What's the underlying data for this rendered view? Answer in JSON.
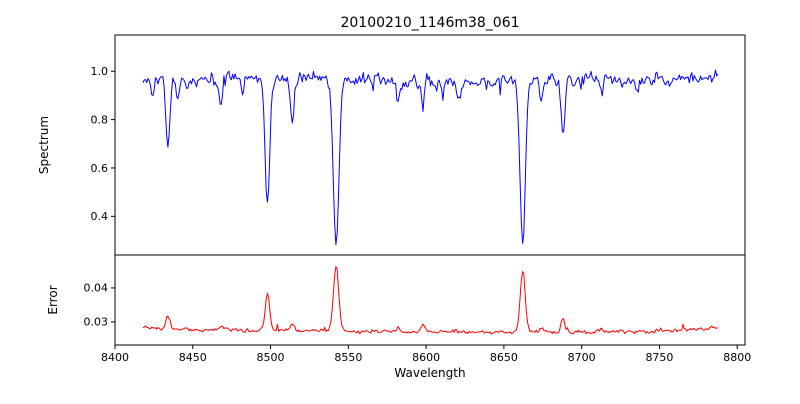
{
  "title": "20100210_1146m38_061",
  "chart_data": {
    "type": "line",
    "title": "20100210_1146m38_061",
    "xlabel": "Wavelength",
    "grid": false,
    "legend": "none",
    "x_data_range": [
      8418,
      8788
    ],
    "xlim": [
      8400,
      8805
    ],
    "xticks": [
      {
        "value": 8400,
        "label": "8400"
      },
      {
        "value": 8450,
        "label": "8450"
      },
      {
        "value": 8500,
        "label": "8500"
      },
      {
        "value": 8550,
        "label": "8550"
      },
      {
        "value": 8600,
        "label": "8600"
      },
      {
        "value": 8650,
        "label": "8650"
      },
      {
        "value": 8700,
        "label": "8700"
      },
      {
        "value": 8750,
        "label": "8750"
      },
      {
        "value": 8800,
        "label": "8800"
      }
    ],
    "panels": [
      {
        "name": "spectrum",
        "ylabel": "Spectrum",
        "line_color": "#0000ff",
        "ylim": [
          0.24,
          1.15
        ],
        "yticks": [
          {
            "value": 0.4,
            "label": "0.4"
          },
          {
            "value": 0.6,
            "label": "0.6"
          },
          {
            "value": 0.8,
            "label": "0.8"
          },
          {
            "value": 1.0,
            "label": "1.0"
          }
        ],
        "continuum_level": 0.965,
        "noise_sigma": 0.021,
        "absorption_lines": [
          {
            "center": 8424.0,
            "depth": 0.06,
            "sigma": 1.0
          },
          {
            "center": 8434.0,
            "depth": 0.27,
            "sigma": 1.3
          },
          {
            "center": 8440.0,
            "depth": 0.09,
            "sigma": 1.0
          },
          {
            "center": 8446.0,
            "depth": 0.05,
            "sigma": 0.9
          },
          {
            "center": 8468.0,
            "depth": 0.11,
            "sigma": 1.1
          },
          {
            "center": 8482.0,
            "depth": 0.05,
            "sigma": 0.9
          },
          {
            "center": 8498.0,
            "depth": 0.535,
            "sigma": 1.5
          },
          {
            "center": 8514.0,
            "depth": 0.18,
            "sigma": 1.2
          },
          {
            "center": 8542.1,
            "depth": 0.69,
            "sigma": 1.8
          },
          {
            "center": 8582.0,
            "depth": 0.09,
            "sigma": 1.0
          },
          {
            "center": 8598.0,
            "depth": 0.12,
            "sigma": 1.1
          },
          {
            "center": 8611.0,
            "depth": 0.05,
            "sigma": 0.9
          },
          {
            "center": 8621.0,
            "depth": 0.07,
            "sigma": 1.0
          },
          {
            "center": 8662.1,
            "depth": 0.67,
            "sigma": 1.7
          },
          {
            "center": 8674.0,
            "depth": 0.08,
            "sigma": 1.0
          },
          {
            "center": 8688.0,
            "depth": 0.21,
            "sigma": 1.2
          },
          {
            "center": 8713.0,
            "depth": 0.06,
            "sigma": 1.0
          },
          {
            "center": 8736.0,
            "depth": 0.05,
            "sigma": 0.9
          },
          {
            "center": 8757.0,
            "depth": 0.04,
            "sigma": 0.9
          }
        ]
      },
      {
        "name": "error",
        "ylabel": "Error",
        "line_color": "#ff0000",
        "ylim": [
          0.0232,
          0.0497
        ],
        "yticks": [
          {
            "value": 0.03,
            "label": "0.03"
          },
          {
            "value": 0.04,
            "label": "0.04"
          }
        ],
        "baseline_level": 0.0272,
        "noise_sigma": 0.00045,
        "edge_bump": {
          "amplitude": 0.0012,
          "scale": 20
        },
        "error_peaks": [
          {
            "center": 8434.0,
            "height": 0.0039,
            "sigma": 1.3
          },
          {
            "center": 8468.0,
            "height": 0.0012,
            "sigma": 1.0
          },
          {
            "center": 8498.0,
            "height": 0.0112,
            "sigma": 1.4
          },
          {
            "center": 8514.0,
            "height": 0.0022,
            "sigma": 1.1
          },
          {
            "center": 8542.1,
            "height": 0.019,
            "sigma": 1.7
          },
          {
            "center": 8582.0,
            "height": 0.0012,
            "sigma": 1.0
          },
          {
            "center": 8598.0,
            "height": 0.0016,
            "sigma": 1.0
          },
          {
            "center": 8662.1,
            "height": 0.0177,
            "sigma": 1.6
          },
          {
            "center": 8674.0,
            "height": 0.0012,
            "sigma": 1.0
          },
          {
            "center": 8688.0,
            "height": 0.0036,
            "sigma": 1.1
          },
          {
            "center": 8713.0,
            "height": 0.0012,
            "sigma": 1.0
          }
        ]
      }
    ]
  }
}
